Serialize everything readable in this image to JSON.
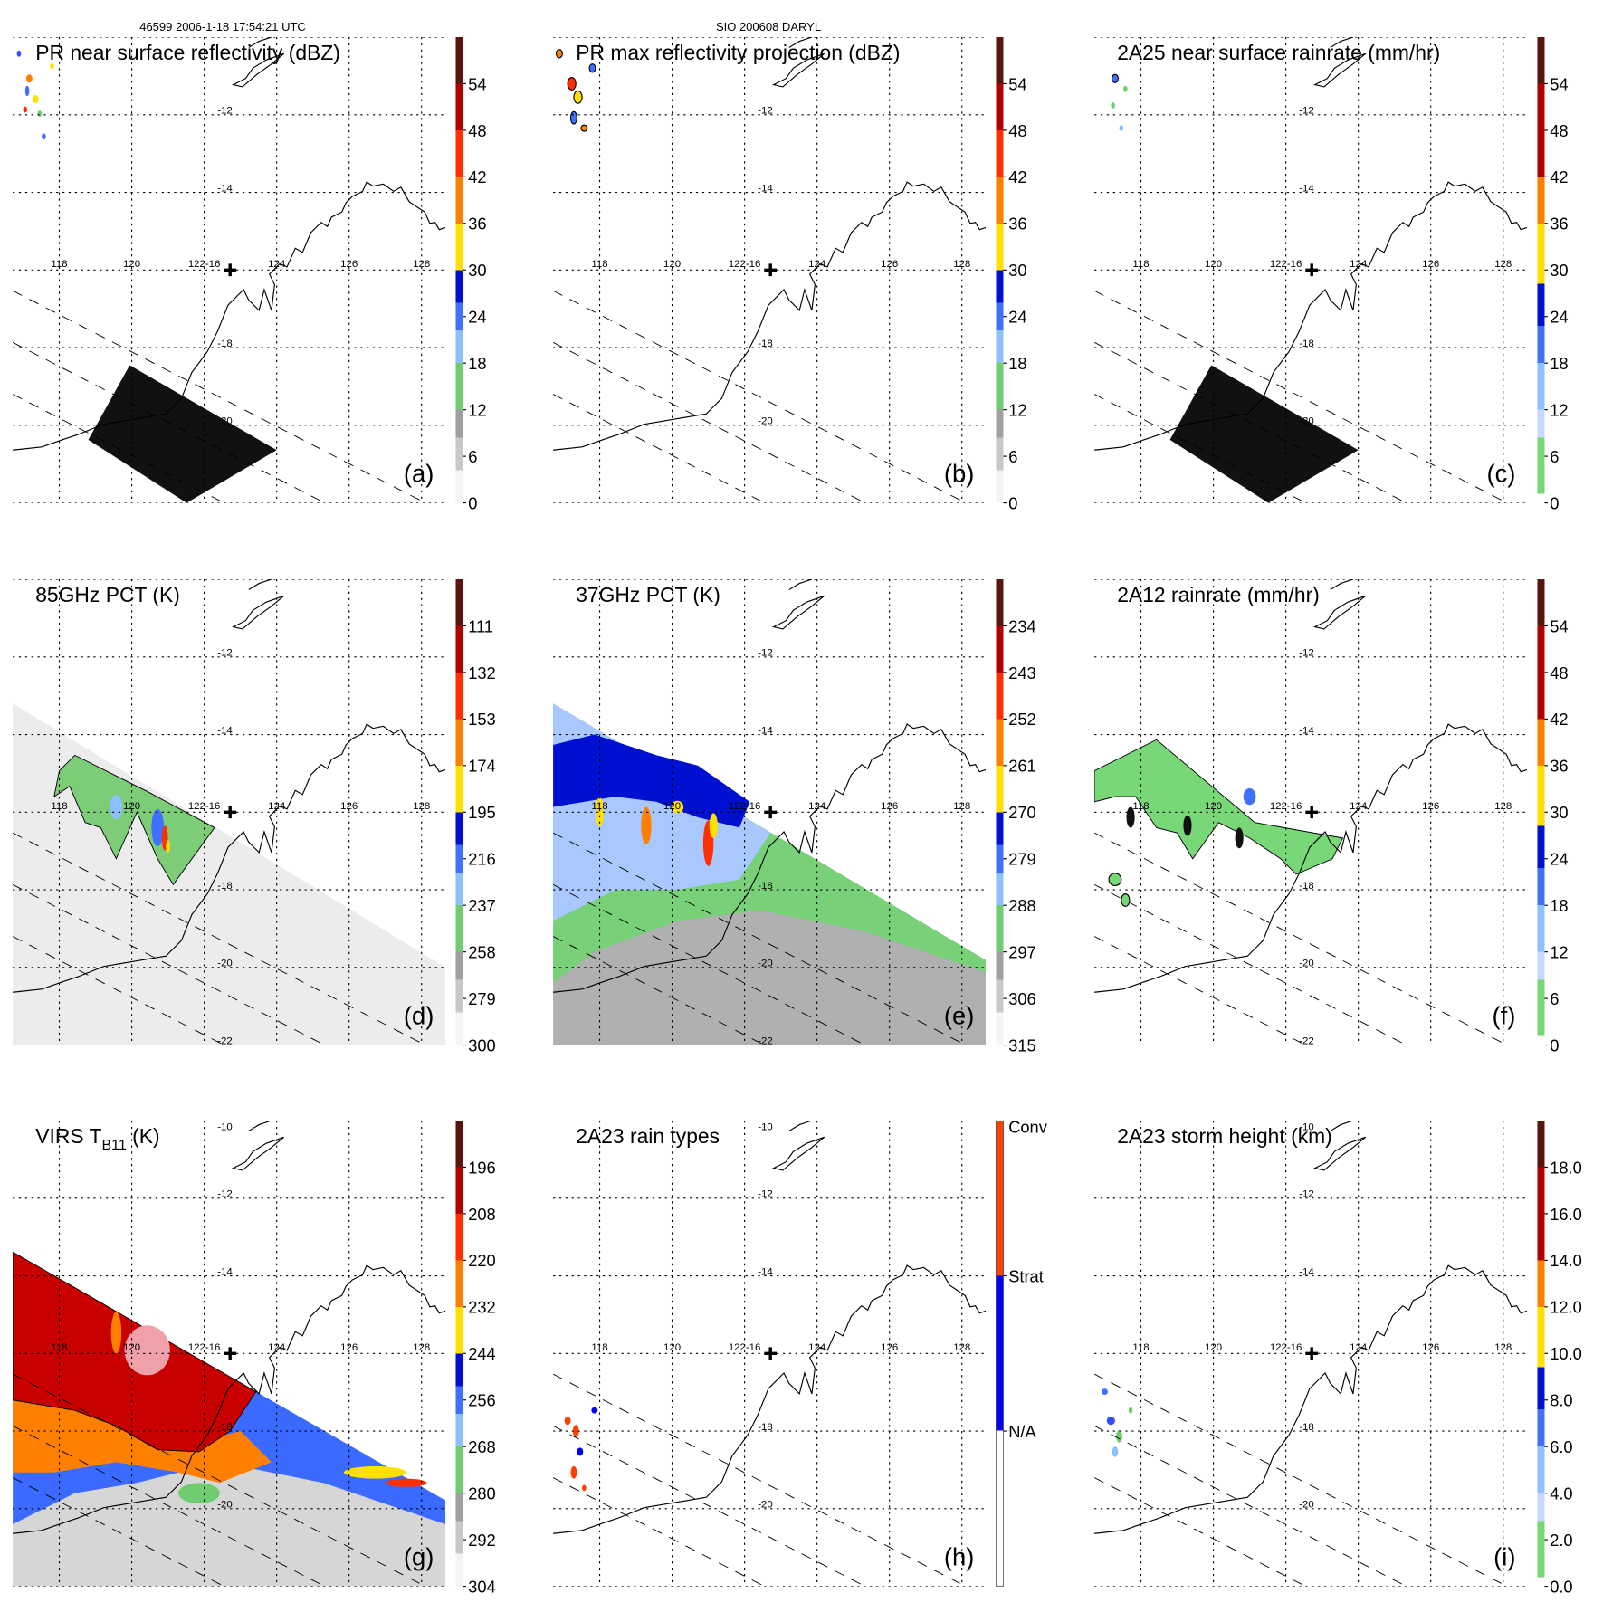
{
  "header": {
    "left": "46599 2006-1-18 17:54:21 UTC",
    "center": "SIO 200608 DARYL"
  },
  "lon_labels": [
    "118",
    "120",
    "122-16",
    "124",
    "126",
    "128"
  ],
  "panels": [
    {
      "id": "a",
      "kind": "a",
      "title": "PR near surface reflectivity (dBZ)",
      "letter": "(a)",
      "palette": "full",
      "ticks": [
        "54",
        "48",
        "42",
        "36",
        "30",
        "24",
        "18",
        "12",
        "6",
        "0"
      ],
      "lat_labels": [
        "",
        "-12",
        "-14",
        "-18",
        "-20",
        ""
      ]
    },
    {
      "id": "b",
      "kind": "b",
      "title": "PR max reflectivity projection (dBZ)",
      "letter": "(b)",
      "palette": "full",
      "ticks": [
        "54",
        "48",
        "42",
        "36",
        "30",
        "24",
        "18",
        "12",
        "6",
        "0"
      ],
      "lat_labels": [
        "",
        "-12",
        "-14",
        "-18",
        "-20",
        ""
      ]
    },
    {
      "id": "c",
      "kind": "c",
      "title": "2A25 near surface rainrate (mm/hr)",
      "letter": "(c)",
      "palette": "rain",
      "ticks": [
        "54",
        "48",
        "42",
        "36",
        "30",
        "24",
        "18",
        "12",
        "6",
        "0"
      ],
      "lat_labels": [
        "",
        "-12",
        "-14",
        "-18",
        "-20",
        ""
      ]
    },
    {
      "id": "d",
      "kind": "d",
      "title": "85GHz PCT (K)",
      "letter": "(d)",
      "palette": "full",
      "ticks": [
        "111",
        "132",
        "153",
        "174",
        "195",
        "216",
        "237",
        "258",
        "279",
        "300"
      ],
      "lat_labels": [
        "",
        "-12",
        "-14",
        "-18",
        "-20",
        "-22"
      ]
    },
    {
      "id": "e",
      "kind": "e",
      "title": "37GHz PCT (K)",
      "letter": "(e)",
      "palette": "full",
      "ticks": [
        "234",
        "243",
        "252",
        "261",
        "270",
        "279",
        "288",
        "297",
        "306",
        "315"
      ],
      "lat_labels": [
        "",
        "-12",
        "-14",
        "-18",
        "-20",
        "-22"
      ]
    },
    {
      "id": "f",
      "kind": "f",
      "title": "2A12 rainrate (mm/hr)",
      "letter": "(f)",
      "palette": "rain",
      "ticks": [
        "54",
        "48",
        "42",
        "36",
        "30",
        "24",
        "18",
        "12",
        "6",
        "0"
      ],
      "lat_labels": [
        "",
        "-12",
        "-14",
        "-18",
        "-20",
        "-22"
      ]
    },
    {
      "id": "g",
      "kind": "g",
      "title": "VIRS T",
      "title_sub": "B11",
      "title_suffix": " (K)",
      "letter": "(g)",
      "palette": "full",
      "ticks": [
        "196",
        "208",
        "220",
        "232",
        "244",
        "256",
        "268",
        "280",
        "292",
        "304"
      ],
      "lat_labels": [
        "-10",
        "-12",
        "-14",
        "-18",
        "-20",
        ""
      ]
    },
    {
      "id": "h",
      "kind": "h",
      "title": "2A23 rain types",
      "letter": "(h)",
      "palette": "types",
      "ticks": [
        "Conv",
        "Strat",
        "N/A"
      ],
      "lat_labels": [
        "-10",
        "-12",
        "-14",
        "-18",
        "-20",
        ""
      ]
    },
    {
      "id": "i",
      "kind": "i",
      "title": "2A23 storm height (km)",
      "letter": "(i)",
      "palette": "rain",
      "ticks": [
        "18.0",
        "16.0",
        "14.0",
        "12.0",
        "10.0",
        "8.0",
        "6.0",
        "4.0",
        "2.0",
        "0.0"
      ],
      "lat_labels": [
        "-10",
        "-12",
        "-14",
        "-18",
        "-20",
        ""
      ]
    }
  ]
}
